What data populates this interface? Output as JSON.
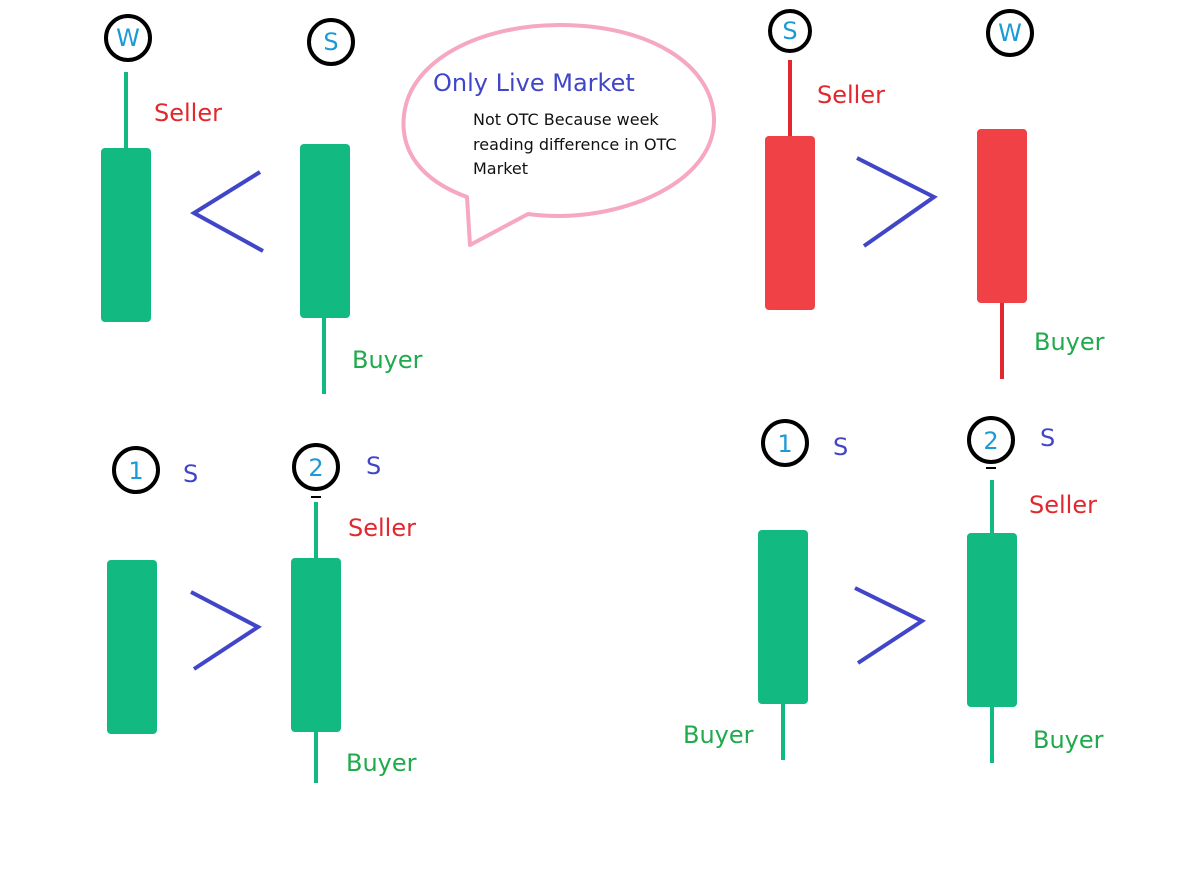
{
  "colors": {
    "bullish": "#12b981",
    "bearish": "#ef4146",
    "wick_green": "#12b981",
    "wick_red": "#e0282e",
    "comparator": "#4146c8",
    "bubble_outline": "#f5a7c4",
    "ring": "#000000"
  },
  "panels": {
    "top_left": {
      "marker_left": "W",
      "marker_right": "S",
      "label_seller": "Seller",
      "label_buyer": "Buyer",
      "comparator": "less-than"
    },
    "top_right": {
      "marker_left": "S",
      "marker_right": "W",
      "label_seller": "Seller",
      "label_buyer": "Buyer",
      "comparator": "greater-than"
    },
    "bottom_left": {
      "marker_left": "1",
      "marker_right": "2",
      "letter_left": "S",
      "letter_right": "S",
      "label_seller": "Seller",
      "label_buyer": "Buyer",
      "comparator": "greater-than"
    },
    "bottom_right": {
      "marker_left": "1",
      "marker_right": "2",
      "letter_left": "S",
      "letter_right": "S",
      "label_seller": "Seller",
      "label_buyer_left": "Buyer",
      "label_buyer_right": "Buyer",
      "comparator": "greater-than"
    }
  },
  "callout": {
    "title": "Only Live Market",
    "body_line1": "Not OTC Because week",
    "body_line2": "reading difference in OTC",
    "body_line3": "Market"
  }
}
